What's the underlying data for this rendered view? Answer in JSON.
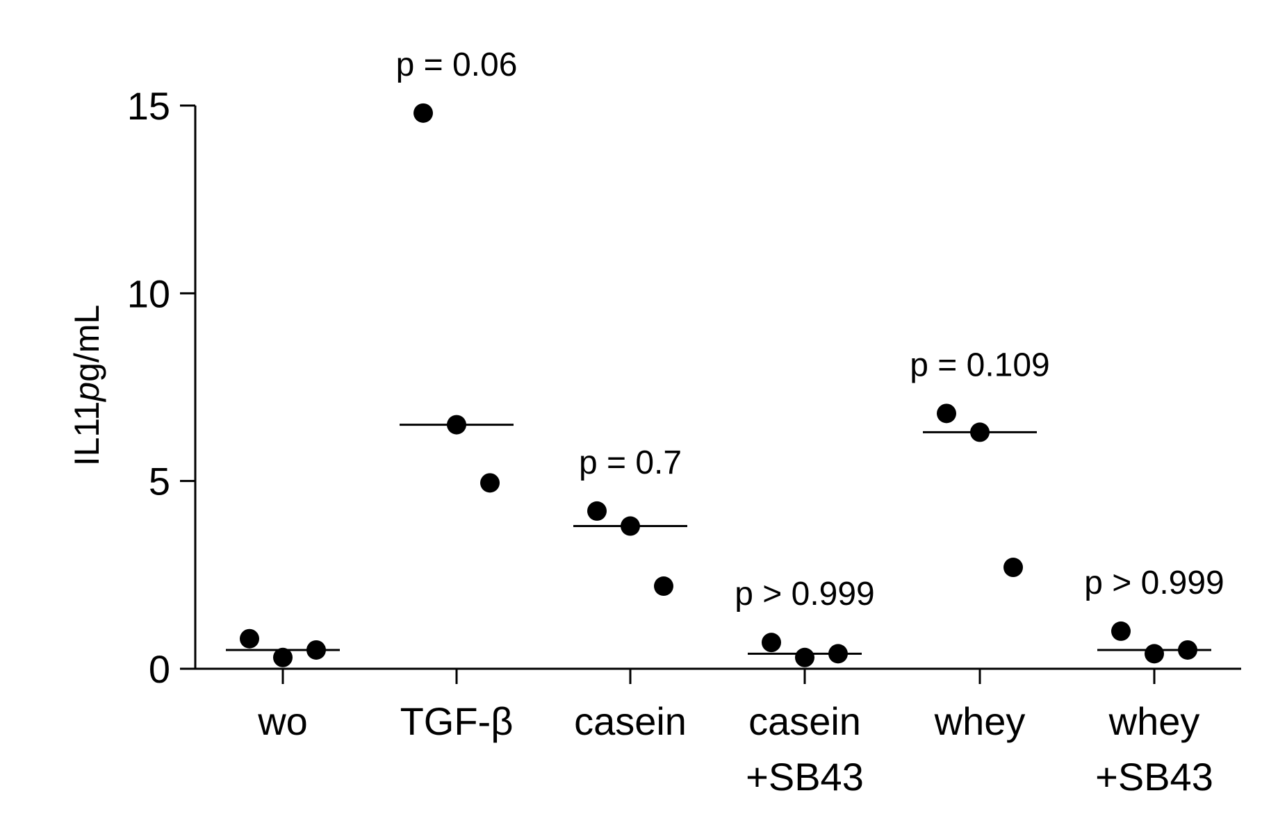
{
  "chart_data": {
    "type": "scatter",
    "title": "",
    "xlabel": "",
    "ylabel": {
      "prefix": "IL11",
      "unit_italic": "p",
      "unit_rest": "g/mL"
    },
    "ylim": [
      0,
      15
    ],
    "yticks": [
      0,
      5,
      10,
      15
    ],
    "ytick_labels": [
      "0",
      "5",
      "10",
      "15"
    ],
    "grid": false,
    "categories": [
      {
        "lines": [
          "wo"
        ],
        "values": [
          0.8,
          0.3,
          0.5
        ],
        "median": 0.5,
        "pvalue": ""
      },
      {
        "lines": [
          "TGF-β"
        ],
        "values": [
          14.8,
          6.5,
          4.95
        ],
        "median": 6.5,
        "pvalue": "p = 0.06"
      },
      {
        "lines": [
          "casein"
        ],
        "values": [
          4.2,
          3.8,
          2.2
        ],
        "median": 3.8,
        "pvalue": "p = 0.7"
      },
      {
        "lines": [
          "casein",
          "+SB43"
        ],
        "values": [
          0.7,
          0.3,
          0.4
        ],
        "median": 0.4,
        "pvalue": "p > 0.999"
      },
      {
        "lines": [
          "whey"
        ],
        "values": [
          6.8,
          6.3,
          2.7
        ],
        "median": 6.3,
        "pvalue": "p = 0.109"
      },
      {
        "lines": [
          "whey",
          "+SB43"
        ],
        "values": [
          1.0,
          0.4,
          0.5
        ],
        "median": 0.5,
        "pvalue": "p > 0.999"
      }
    ],
    "colors": {
      "points": "#000000",
      "axis": "#000000"
    }
  }
}
